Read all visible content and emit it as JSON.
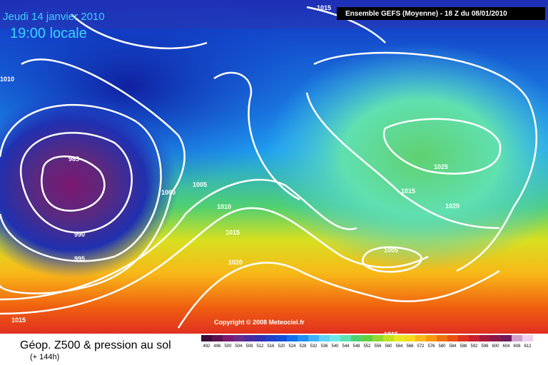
{
  "header": {
    "date": "Jeudi 14 janvier 2010",
    "time": "19:00 locale",
    "model": "Ensemble GEFS (Moyenne)  - 18 Z du 08/01/2010"
  },
  "copyright": "Copyright © 2008 Meteociel.fr",
  "isobars": [
    "1015",
    "1010",
    "985",
    "1000",
    "1005",
    "1010",
    "990",
    "1015",
    "995",
    "1020",
    "1025",
    "1015",
    "1020",
    "1005",
    "1015",
    "1015"
  ],
  "footer": {
    "title": "Géop. Z500 & pression au sol",
    "subtitle": "(+ 144h)"
  },
  "legend": {
    "values": [
      492,
      496,
      500,
      504,
      508,
      512,
      516,
      520,
      524,
      528,
      532,
      536,
      540,
      544,
      548,
      552,
      556,
      560,
      564,
      568,
      572,
      576,
      580,
      584,
      588,
      592,
      596,
      600,
      604,
      608,
      612
    ],
    "colors": [
      "#3a0a3a",
      "#5a1050",
      "#7a1870",
      "#6a2a8a",
      "#4a2aa0",
      "#3030b0",
      "#2040c8",
      "#1050d8",
      "#1070e8",
      "#2090f0",
      "#40b0f8",
      "#60d0f8",
      "#70e8e8",
      "#60e0b0",
      "#50d070",
      "#60d040",
      "#90d830",
      "#c0e020",
      "#e8e820",
      "#f8d820",
      "#f8b818",
      "#f89810",
      "#f07010",
      "#e85010",
      "#e03020",
      "#c82030",
      "#a81838",
      "#881848",
      "#701858",
      "#d0a0c8",
      "#f0d0f0"
    ]
  }
}
